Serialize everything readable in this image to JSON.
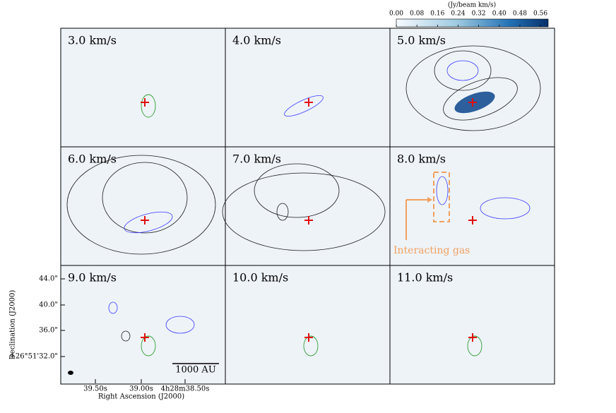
{
  "chart_data": {
    "type": "channel_map",
    "panels": [
      "3.0 km/s",
      "4.0 km/s",
      "5.0 km/s",
      "6.0 km/s",
      "7.0 km/s",
      "8.0 km/s",
      "9.0 km/s",
      "10.0 km/s",
      "11.0 km/s"
    ],
    "colorbar": {
      "label": "(Jy/beam km/s)",
      "lim": [
        0,
        0.59
      ],
      "ticks": [
        {
          "value": 0,
          "label": "0.00"
        },
        {
          "value": 0.08,
          "label": "0.08"
        },
        {
          "value": 0.16,
          "label": "0.16"
        },
        {
          "value": 0.24,
          "label": "0.24"
        },
        {
          "value": 0.32,
          "label": "0.32"
        },
        {
          "value": 0.4,
          "label": "0.40"
        },
        {
          "value": 0.48,
          "label": "0.48"
        },
        {
          "value": 0.56,
          "label": "0.56"
        }
      ]
    },
    "xlabel": "Right Ascension (J2000)",
    "ylabel": "Declination (J2000)",
    "xticks": [
      "39.50s",
      "39.00s",
      "4h28m38.50s"
    ],
    "yticks": [
      "44.0\"",
      "40.0\"",
      "36.0\"",
      "+26°51'32.0\""
    ],
    "scale_bar": "1000 AU",
    "annotation": "Interacting gas"
  }
}
